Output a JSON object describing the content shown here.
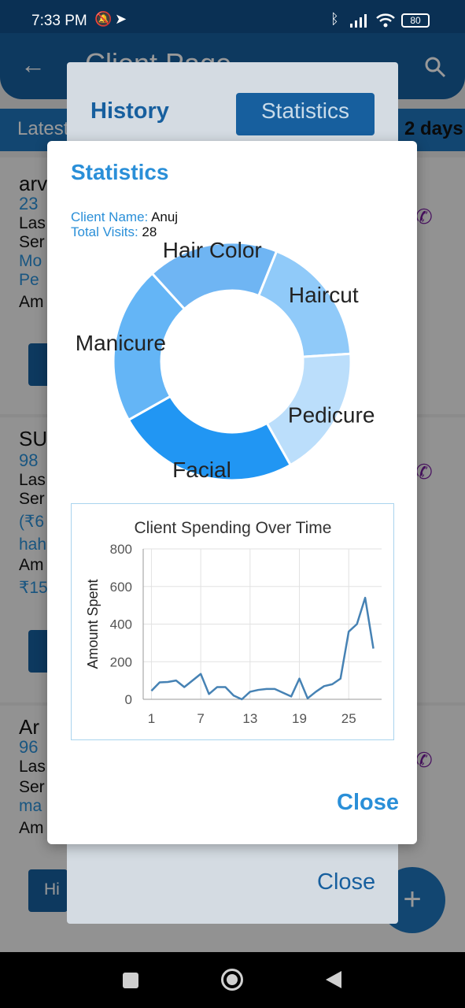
{
  "status_bar": {
    "time": "7:33 PM",
    "battery": "80"
  },
  "app_bar": {
    "title": "Client Page"
  },
  "tabs_strip": {
    "left": "Latest",
    "right": "2 days"
  },
  "client_cards": [
    {
      "name": "arv",
      "phone": "23",
      "last": "Las",
      "services": "Ser",
      "extra1": "Mo",
      "extra2": "Pe",
      "amount": "Am"
    },
    {
      "name": "SU",
      "phone": "98",
      "last": "Las",
      "services": "Ser",
      "extra1": "(₹6",
      "extra2": "hah",
      "amount": "Am",
      "total": "₹15"
    },
    {
      "name": "Ar",
      "phone": "96",
      "last": "Las",
      "services": "Ser",
      "extra1": "ma",
      "amount": "Am",
      "history_btn": "Hi"
    }
  ],
  "history_dialog": {
    "tab_history": "History",
    "tab_statistics": "Statistics",
    "close": "Close"
  },
  "stats_dialog": {
    "title": "Statistics",
    "client_name_label": "Client Name:",
    "client_name": "Anuj",
    "total_visits_label": "Total Visits:",
    "total_visits": "28",
    "close": "Close"
  },
  "colors": {
    "accent": "#2a8fd8",
    "primary_dark": "#175f9e",
    "line": "#4682b4"
  },
  "chart_data": [
    {
      "type": "pie",
      "variant": "donut",
      "categories": [
        "Haircut",
        "Pedicure",
        "Facial",
        "Manicure",
        "Hair Color"
      ],
      "values": [
        5,
        5,
        7,
        6,
        5
      ],
      "colors": [
        "#90caf9",
        "#bbdefb",
        "#2196f3",
        "#64b5f6",
        "#6fb5f3"
      ]
    },
    {
      "type": "line",
      "title": "Client Spending Over Time",
      "xlabel": "",
      "ylabel": "Amount Spent",
      "x": [
        1,
        2,
        3,
        4,
        5,
        6,
        7,
        8,
        9,
        10,
        11,
        12,
        13,
        14,
        15,
        16,
        17,
        18,
        19,
        20,
        21,
        22,
        23,
        24,
        25,
        26,
        27,
        28
      ],
      "y": [
        45,
        90,
        92,
        100,
        65,
        100,
        135,
        28,
        65,
        65,
        20,
        0,
        40,
        50,
        55,
        55,
        35,
        15,
        110,
        5,
        40,
        70,
        80,
        110,
        360,
        400,
        540,
        270
      ],
      "xticks": [
        1,
        7,
        13,
        19,
        25
      ],
      "yticks": [
        0,
        200,
        400,
        600,
        800
      ],
      "xlim": [
        0,
        29
      ],
      "ylim": [
        0,
        800
      ],
      "grid": true
    }
  ]
}
